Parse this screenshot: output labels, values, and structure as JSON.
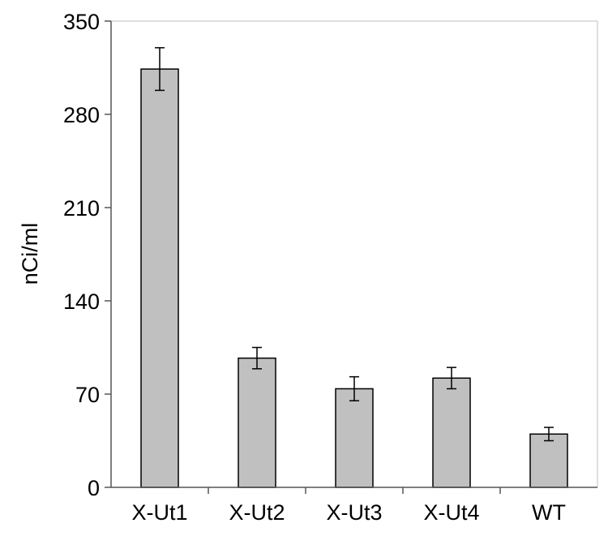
{
  "chart_data": {
    "type": "bar",
    "title": "",
    "xlabel": "",
    "ylabel": "nCi/ml",
    "categories": [
      "X-Ut1",
      "X-Ut2",
      "X-Ut3",
      "X-Ut4",
      "WT"
    ],
    "values": [
      314,
      97,
      74,
      82,
      40
    ],
    "error": [
      16,
      8,
      9,
      8,
      5
    ],
    "ylim": [
      0,
      350
    ],
    "yticks": [
      "0",
      "70",
      "140",
      "210",
      "280",
      "350"
    ],
    "grid": false,
    "legend": "none",
    "colors": {
      "bar_fill": "#c0c0c0",
      "bar_stroke": "#000000",
      "axis": "#555555",
      "frame": "#bfbfbf"
    }
  }
}
